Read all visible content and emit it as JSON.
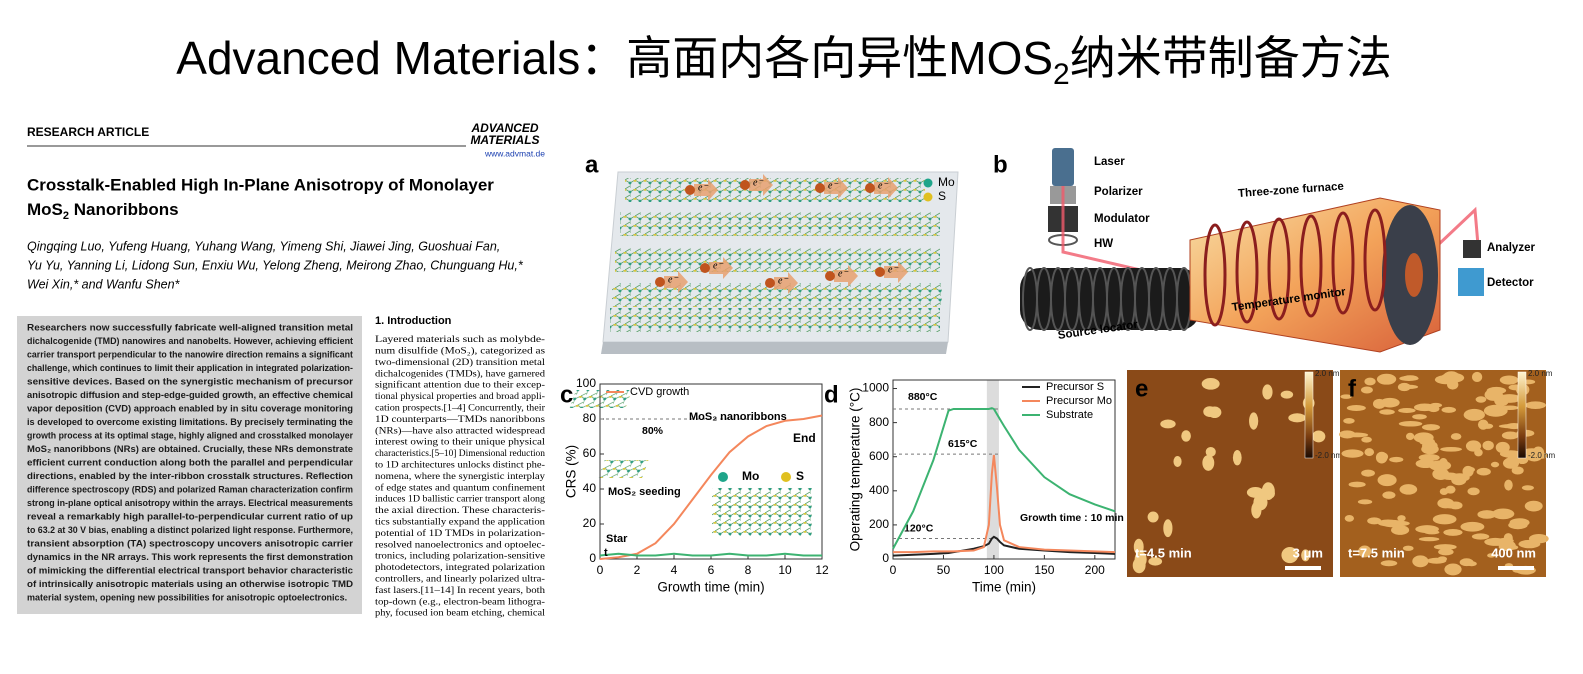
{
  "title": {
    "parts": [
      "Advanced Materials：高面内各向异性MOS",
      "2",
      "纳米带制备方法"
    ]
  },
  "paper": {
    "section": "RESEARCH ARTICLE",
    "journal": [
      "ADVANCED",
      "MATERIALS"
    ],
    "url": "www.advmat.de",
    "title": [
      "Crosstalk-Enabled High In-Plane Anisotropy of Monolayer",
      "MoS",
      "2",
      " Nanoribbons"
    ],
    "authors": [
      "Qingqing Luo, Yufeng Huang, Yuhang Wang, Yimeng Shi, Jiawei Jing, Guoshuai Fan,",
      "Yu Yu, Yanning Li, Lidong Sun, Enxiu Wu, Yelong Zheng, Meirong Zhao, Chunguang Hu,*",
      "Wei Xin,* and Wanfu Shen*"
    ],
    "abstract": [
      "Researchers now successfully fabricate well-aligned transition metal",
      "dichalcogenide (TMD) nanowires and nanobelts. However, achieving efficient",
      "carrier transport perpendicular to the nanowire direction remains a significant",
      "challenge, which continues to limit their application in integrated polarization-",
      "sensitive devices. Based on the synergistic mechanism of precursor",
      "anisotropic diffusion and step-edge-guided growth, an effective chemical",
      "vapor deposition (CVD) approach enabled by in situ coverage monitoring",
      "is developed to overcome existing limitations. By precisely terminating the",
      "growth process at its optimal stage, highly aligned and crosstalked monolayer",
      "MoS₂ nanoribbons (NRs) are obtained. Crucially, these NRs demonstrate",
      "efficient current conduction along both the parallel and perpendicular",
      "directions, enabled by the inter-ribbon crosstalk structures. Reflection",
      "difference spectroscopy (RDS) and polarized Raman characterization confirm",
      "strong in-plane optical anisotropy within the arrays. Electrical measurements",
      "reveal a remarkably high parallel-to-perpendicular current ratio of up",
      "to 63.2 at 30 V bias, enabling a distinct polarized light response. Furthermore,",
      "transient absorption (TA) spectroscopy uncovers anisotropic carrier",
      "dynamics in the NR arrays. This work represents the first demonstration",
      "of mimicking the differential electrical transport behavior characteristic",
      "of intrinsically anisotropic materials using an otherwise isotropic TMD",
      "material system, opening new possibilities for anisotropic optoelectronics."
    ],
    "intro_heading": "1. Introduction",
    "intro": [
      "Layered materials such as molybde-",
      "num disulfide (MoS₂), categorized as",
      "two-dimensional (2D) transition metal",
      "dichalcogenides (TMDs), have garnered",
      "significant attention due to their excep-",
      "tional physical properties and broad appli-",
      "cation prospects.[1–4] Concurrently, their",
      "1D counterparts—TMDs nanoribbons",
      "(NRs)—have also attracted widespread",
      "interest owing to their unique physical",
      "characteristics.[5–10] Dimensional reduction",
      "to 1D architectures unlocks distinct phe-",
      "nomena, where the synergistic interplay",
      "of edge states and quantum confinement",
      "induces 1D ballistic carrier transport along",
      "the axial direction. These characteris-",
      "tics substantially expand the application",
      "potential of 1D TMDs in polarization-",
      "resolved nanoelectronics and optoelec-",
      "tronics, including polarization-sensitive",
      "photodetectors, integrated polarization",
      "controllers, and linearly polarized ultra-",
      "fast lasers.[11–14] In recent years, both",
      "top-down (e.g., electron-beam lithogra-",
      "phy, focused ion beam etching, chemical"
    ]
  },
  "figure": {
    "a": {
      "label": "a",
      "legend": [
        "Mo",
        "S"
      ],
      "electron": "e⁻"
    },
    "b": {
      "label": "b",
      "labels": [
        "Laser",
        "Polarizer",
        "Modulator",
        "HW",
        "Three-zone furnace",
        "Analyzer",
        "Detector",
        "Temperature monitor",
        "Source locator"
      ]
    },
    "c": {
      "label": "c",
      "chart_data": {
        "type": "line",
        "x": [
          0,
          1,
          2,
          3,
          4,
          5,
          6,
          7,
          8,
          9,
          10,
          11,
          12
        ],
        "series": [
          {
            "name": "CVD growth",
            "color": "#f4875c",
            "values": [
              0,
              1,
              3,
              9,
              20,
              34,
              48,
              61,
              70,
              76,
              79,
              80,
              82
            ]
          },
          {
            "color": "#3cb371",
            "values": [
              2,
              3,
              2,
              2,
              3,
              2,
              2,
              3,
              2,
              2,
              3,
              2,
              2
            ]
          }
        ],
        "xlim": [
          0,
          12
        ],
        "ylim": [
          0,
          100
        ],
        "xticks": [
          0,
          2,
          4,
          6,
          8,
          10,
          12
        ],
        "yticks": [
          0,
          20,
          40,
          60,
          80,
          100
        ],
        "xlabel": "Growth time (min)",
        "ylabel": "CRS (%)",
        "reference": [
          {
            "value": 80,
            "label": "80%"
          }
        ],
        "annotations": [
          "MoS₂ nanoribbons",
          "MoS₂ seeding",
          "End",
          "Star",
          "t",
          "Mo",
          "S"
        ]
      }
    },
    "d": {
      "label": "d",
      "chart_data": {
        "type": "line",
        "x": [
          0,
          20,
          40,
          55,
          60,
          80,
          90,
          95,
          98,
          100,
          103,
          106,
          110,
          125,
          150,
          175,
          200,
          220
        ],
        "series": [
          {
            "name": "Precursor S",
            "color": "#222222",
            "values": [
              20,
              25,
              30,
              35,
              40,
              60,
              75,
              90,
              120,
              130,
              120,
              100,
              80,
              60,
              50,
              40,
              35,
              30
            ]
          },
          {
            "name": "Precursor Mo",
            "color": "#f4875c",
            "values": [
              40,
              40,
              45,
              45,
              45,
              50,
              70,
              200,
              500,
              610,
              420,
              200,
              110,
              70,
              55,
              50,
              45,
              40
            ]
          },
          {
            "name": "Substrate",
            "color": "#3cb371",
            "values": [
              60,
              280,
              580,
              870,
              880,
              880,
              880,
              880,
              885,
              880,
              850,
              820,
              780,
              640,
              480,
              380,
              320,
              280
            ]
          }
        ],
        "xlim": [
          0,
          220
        ],
        "ylim": [
          0,
          1050
        ],
        "xticks": [
          0,
          50,
          100,
          150,
          200
        ],
        "yticks": [
          0,
          200,
          400,
          600,
          800,
          1000
        ],
        "xlabel": "Time (min)",
        "ylabel": "Operating temperature (°C)",
        "shaded_x": [
          93,
          105
        ],
        "reference": [
          {
            "value": 880,
            "label": "880°C"
          },
          {
            "value": 615,
            "label": "615°C"
          },
          {
            "value": 120,
            "label": "120°C"
          }
        ],
        "annotations": [
          "Growth time : 10 min"
        ]
      }
    },
    "e": {
      "label": "e",
      "scale_top": "2.0 nm",
      "scale_bottom": "-2.0 nm",
      "time": "t=4.5 min",
      "bar": "3 μm"
    },
    "f": {
      "label": "f",
      "scale_top": "2.0 nm",
      "scale_bottom": "-2.0 nm",
      "time": "t=7.5 min",
      "bar": "400 nm"
    }
  }
}
